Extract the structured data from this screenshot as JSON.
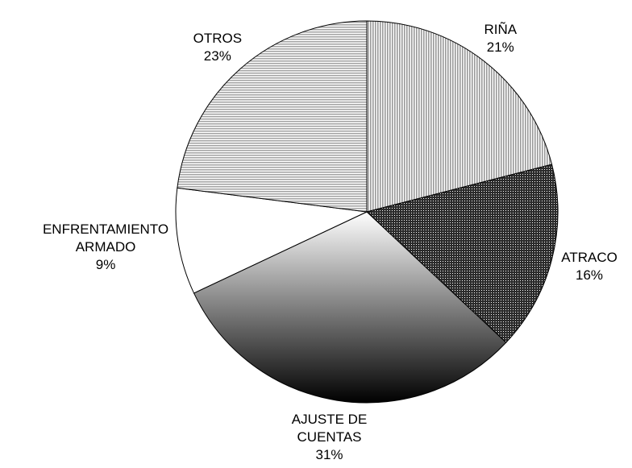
{
  "chart_data": {
    "type": "pie",
    "categories": [
      "RIÑA",
      "ATRACO",
      "AJUSTE DE\nCUENTAS",
      "ENFRENTAMIENTO\nARMADO",
      "OTROS"
    ],
    "values": [
      21,
      16,
      31,
      9,
      23
    ],
    "value_labels": [
      "21%",
      "16%",
      "31%",
      "9%",
      "23%"
    ],
    "colors": [
      "#9a9a9a",
      "#2b2b2b",
      "#8a8a8a",
      "#ffffff",
      "#a6a6a6"
    ]
  }
}
